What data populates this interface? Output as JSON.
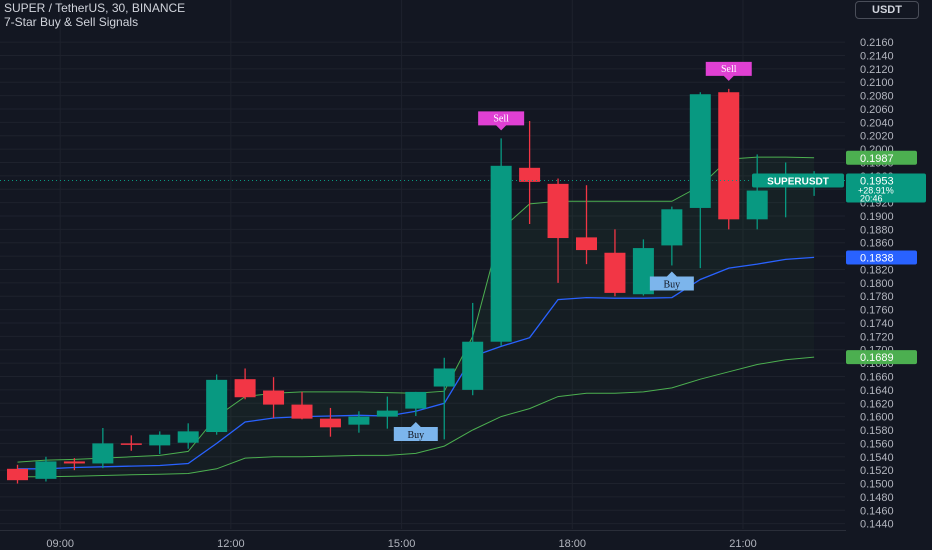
{
  "header": {
    "title": "SUPER / TetherUS, 30, BINANCE",
    "indicator": "7-Star Buy & Sell Signals"
  },
  "price_axis": {
    "currency": "USDT"
  },
  "colors": {
    "background": "#131722",
    "bull": "#089981",
    "bear": "#f23645",
    "midline": "#2962ff",
    "band": "#4caf50",
    "buy_label": "#7cb5ec",
    "sell_label": "#e040d3"
  },
  "chart_data": {
    "type": "candlestick",
    "symbol": "SUPERUSDT",
    "ylim": [
      0.1432,
      0.219
    ],
    "y_ticks": [
      0.144,
      0.146,
      0.148,
      0.15,
      0.152,
      0.154,
      0.156,
      0.158,
      0.16,
      0.162,
      0.164,
      0.166,
      0.168,
      0.17,
      0.172,
      0.174,
      0.176,
      0.178,
      0.18,
      0.182,
      0.184,
      0.186,
      0.188,
      0.19,
      0.192,
      0.194,
      0.196,
      0.198,
      0.2,
      0.202,
      0.204,
      0.206,
      0.208,
      0.21,
      0.212,
      0.214,
      0.216
    ],
    "y_tick_labels": [
      "0.1440",
      "0.1460",
      "0.1480",
      "0.1500",
      "0.1520",
      "0.1540",
      "0.1560",
      "0.1580",
      "0.1600",
      "0.1620",
      "0.1640",
      "0.1660",
      "0.1680",
      "0.1700",
      "0.1720",
      "0.1740",
      "0.1760",
      "0.1780",
      "0.1800",
      "0.1820",
      "0.1840",
      "0.1860",
      "0.1880",
      "0.1900",
      "0.1920",
      "0.1940",
      "0.1960",
      "0.1980",
      "0.2000",
      "0.2020",
      "0.2040",
      "0.2060",
      "0.2080",
      "0.2100",
      "0.2120",
      "0.2140",
      "0.2160"
    ],
    "x_ticks": [
      {
        "label": "09:00",
        "index": 1.5
      },
      {
        "label": "12:00",
        "index": 7.5
      },
      {
        "label": "15:00",
        "index": 13.5
      },
      {
        "label": "18:00",
        "index": 19.5
      },
      {
        "label": "21:00",
        "index": 25.5
      }
    ],
    "candles": [
      {
        "o": 0.1522,
        "h": 0.1528,
        "l": 0.15,
        "c": 0.1505
      },
      {
        "o": 0.1507,
        "h": 0.154,
        "l": 0.1503,
        "c": 0.1533
      },
      {
        "o": 0.1533,
        "h": 0.1538,
        "l": 0.152,
        "c": 0.153
      },
      {
        "o": 0.153,
        "h": 0.1583,
        "l": 0.1523,
        "c": 0.156
      },
      {
        "o": 0.156,
        "h": 0.1572,
        "l": 0.1549,
        "c": 0.1558
      },
      {
        "o": 0.1557,
        "h": 0.1578,
        "l": 0.1544,
        "c": 0.1573
      },
      {
        "o": 0.1561,
        "h": 0.159,
        "l": 0.1552,
        "c": 0.1578
      },
      {
        "o": 0.1577,
        "h": 0.1663,
        "l": 0.1573,
        "c": 0.1655
      },
      {
        "o": 0.1656,
        "h": 0.1672,
        "l": 0.1626,
        "c": 0.1629
      },
      {
        "o": 0.1639,
        "h": 0.1659,
        "l": 0.1598,
        "c": 0.1618
      },
      {
        "o": 0.1618,
        "h": 0.1637,
        "l": 0.1596,
        "c": 0.1597
      },
      {
        "o": 0.1597,
        "h": 0.1613,
        "l": 0.157,
        "c": 0.1584
      },
      {
        "o": 0.1588,
        "h": 0.1608,
        "l": 0.1576,
        "c": 0.16
      },
      {
        "o": 0.16,
        "h": 0.163,
        "l": 0.1582,
        "c": 0.1609
      },
      {
        "o": 0.1612,
        "h": 0.1637,
        "l": 0.1601,
        "c": 0.1637
      },
      {
        "o": 0.1645,
        "h": 0.1688,
        "l": 0.1566,
        "c": 0.1672
      },
      {
        "o": 0.164,
        "h": 0.177,
        "l": 0.1632,
        "c": 0.1712
      },
      {
        "o": 0.1712,
        "h": 0.2016,
        "l": 0.1706,
        "c": 0.1975
      },
      {
        "o": 0.1972,
        "h": 0.2042,
        "l": 0.1888,
        "c": 0.1951
      },
      {
        "o": 0.1948,
        "h": 0.1956,
        "l": 0.18,
        "c": 0.1867
      },
      {
        "o": 0.1868,
        "h": 0.1946,
        "l": 0.1828,
        "c": 0.1849
      },
      {
        "o": 0.1845,
        "h": 0.188,
        "l": 0.178,
        "c": 0.1785
      },
      {
        "o": 0.1783,
        "h": 0.1865,
        "l": 0.1781,
        "c": 0.1852
      },
      {
        "o": 0.1856,
        "h": 0.1914,
        "l": 0.1826,
        "c": 0.191
      },
      {
        "o": 0.1912,
        "h": 0.2085,
        "l": 0.1822,
        "c": 0.2082
      },
      {
        "o": 0.2085,
        "h": 0.209,
        "l": 0.188,
        "c": 0.1895
      },
      {
        "o": 0.1895,
        "h": 0.1992,
        "l": 0.188,
        "c": 0.1938
      },
      {
        "o": 0.1945,
        "h": 0.198,
        "l": 0.1898,
        "c": 0.1945
      },
      {
        "o": 0.1945,
        "h": 0.1967,
        "l": 0.193,
        "c": 0.1953
      }
    ],
    "bands": {
      "upper": [
        0.1532,
        0.1535,
        0.1536,
        0.1538,
        0.154,
        0.1542,
        0.1548,
        0.16,
        0.163,
        0.1635,
        0.1637,
        0.1637,
        0.1637,
        0.1636,
        0.1635,
        0.1638,
        0.172,
        0.188,
        0.1918,
        0.1922,
        0.1922,
        0.1922,
        0.1922,
        0.1922,
        0.1945,
        0.1985,
        0.1988,
        0.1988,
        0.1987
      ],
      "mid": [
        0.1522,
        0.1522,
        0.1524,
        0.1525,
        0.1526,
        0.1527,
        0.153,
        0.156,
        0.1592,
        0.1598,
        0.16,
        0.1601,
        0.1602,
        0.1601,
        0.1608,
        0.162,
        0.169,
        0.1705,
        0.1718,
        0.1775,
        0.1778,
        0.1777,
        0.1777,
        0.1778,
        0.1805,
        0.1822,
        0.1828,
        0.1835,
        0.1838
      ],
      "lower": [
        0.151,
        0.151,
        0.1511,
        0.1512,
        0.1513,
        0.1514,
        0.1515,
        0.1522,
        0.1538,
        0.154,
        0.154,
        0.1541,
        0.1542,
        0.1542,
        0.1545,
        0.1556,
        0.158,
        0.16,
        0.1612,
        0.163,
        0.1635,
        0.1635,
        0.1637,
        0.1643,
        0.1656,
        0.1667,
        0.1678,
        0.1685,
        0.1689
      ]
    },
    "signals": [
      {
        "type": "Buy",
        "index": 14
      },
      {
        "type": "Sell",
        "index": 17
      },
      {
        "type": "Buy",
        "index": 23
      },
      {
        "type": "Sell",
        "index": 25
      }
    ],
    "price_labels": [
      {
        "value": 0.1987,
        "text": "0.1987",
        "color": "#4caf50"
      },
      {
        "value": 0.1838,
        "text": "0.1838",
        "color": "#2962ff"
      },
      {
        "value": 0.1689,
        "text": "0.1689",
        "color": "#4caf50"
      }
    ],
    "last_price": {
      "value": 0.1953,
      "symbol": "SUPERUSDT",
      "text": "0.1953",
      "change": "+28.91%",
      "countdown": "20:46"
    }
  }
}
